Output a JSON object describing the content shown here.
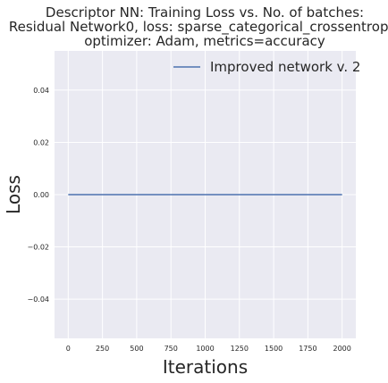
{
  "chart_data": {
    "type": "line",
    "title": [
      "Descriptor NN: Training Loss vs. No. of batches:",
      "Residual Network0, loss: sparse_categorical_crossentropy,",
      "optimizer: Adam, metrics=accuracy"
    ],
    "xlabel": "Iterations",
    "ylabel": "Loss",
    "xlim": [
      -100,
      2100
    ],
    "ylim": [
      -0.055,
      0.055
    ],
    "xticks": [
      0,
      250,
      500,
      750,
      1000,
      1250,
      1500,
      1750,
      2000
    ],
    "xtick_labels": [
      "0",
      "250",
      "500",
      "750",
      "1000",
      "1250",
      "1500",
      "1750",
      "2000"
    ],
    "yticks": [
      -0.04,
      -0.02,
      0.0,
      0.02,
      0.04
    ],
    "ytick_labels": [
      "−0.04",
      "−0.02",
      "0.00",
      "0.02",
      "0.04"
    ],
    "grid": true,
    "legend": "top-right",
    "series": [
      {
        "name": "Improved network v. 2",
        "color": "#4c72b0",
        "x": [
          0,
          2000
        ],
        "y": [
          0.0,
          0.0
        ]
      }
    ]
  },
  "style": {
    "plot_background": "#eaeaf2",
    "grid_color": "#ffffff",
    "text_color": "#262626"
  }
}
